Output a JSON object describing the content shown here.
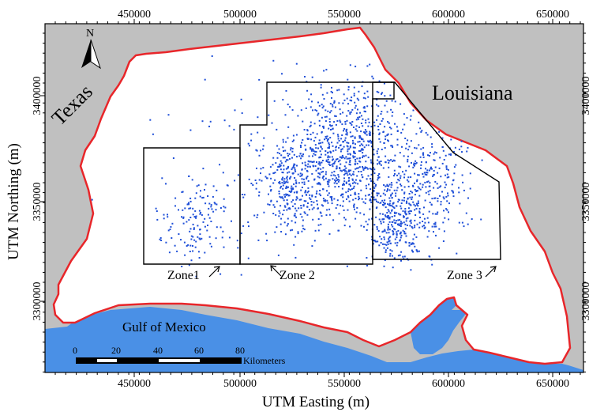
{
  "map": {
    "x_axis": {
      "title": "UTM Easting (m)",
      "ticks": [
        "450000",
        "500000",
        "550000",
        "600000",
        "650000"
      ],
      "range": [
        405000,
        665000
      ]
    },
    "y_axis": {
      "title": "UTM Northing (m)",
      "ticks": [
        "3300000",
        "3350000",
        "3400000"
      ],
      "range": [
        3263000,
        3451000
      ]
    },
    "labels": {
      "texas": "Texas",
      "louisiana": "Louisiana",
      "gulf": "Gulf of Mexico",
      "north": "N"
    },
    "zones": [
      {
        "name": "Zone 1",
        "label": "Zone1"
      },
      {
        "name": "Zone 2",
        "label": "Zone 2"
      },
      {
        "name": "Zone 3",
        "label": "Zone 3"
      }
    ],
    "scale_bar": {
      "ticks": [
        "0",
        "20",
        "40",
        "60",
        "80"
      ],
      "unit": "Kilometers"
    },
    "colors": {
      "land_outside": "#c0c0c0",
      "study_area": "#ffffff",
      "boundary": "#e8262a",
      "water": "#4a90e6",
      "points": "#1f4fd8",
      "zone_outline": "#000000"
    },
    "point_count": 1900
  }
}
